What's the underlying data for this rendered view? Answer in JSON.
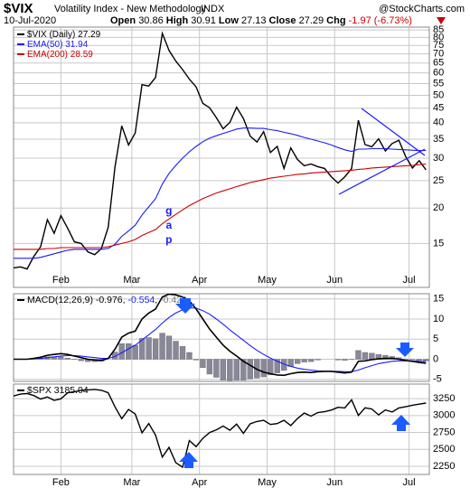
{
  "header": {
    "symbol": "$VIX",
    "name": "Volatility Index - New Methodology",
    "exchange": "INDX",
    "source": "@StockCharts.com",
    "date": "10-Jul-2020",
    "open_label": "Open",
    "open": 30.86,
    "high_label": "High",
    "high": 30.91,
    "low_label": "Low",
    "low": 27.13,
    "close_label": "Close",
    "close": 27.29,
    "change_label": "Chg",
    "change": "-1.97 (-6.73%)"
  },
  "chart_data": [
    {
      "type": "line",
      "ylog": true,
      "grid": true,
      "annotation": "gap",
      "x": [
        0,
        2,
        4,
        6,
        8,
        10,
        12,
        14,
        16,
        18,
        20,
        22,
        24,
        26,
        28,
        30,
        32,
        34,
        36,
        38,
        40,
        42,
        44,
        46,
        48,
        50,
        52,
        54,
        56,
        58,
        60,
        62,
        64,
        66,
        68,
        70,
        72,
        74,
        76,
        78,
        80,
        82,
        84,
        86,
        88,
        90,
        92,
        94,
        96,
        98,
        100,
        102,
        104,
        106,
        108,
        110,
        112,
        114,
        116,
        118,
        120,
        122
      ],
      "xlim": [
        0,
        123
      ],
      "xticks": [
        {
          "value": 14,
          "label": "Feb"
        },
        {
          "value": 35,
          "label": "Mar"
        },
        {
          "value": 55,
          "label": "Apr"
        },
        {
          "value": 75,
          "label": "May"
        },
        {
          "value": 95,
          "label": "Jun"
        },
        {
          "value": 117,
          "label": "Jul"
        }
      ],
      "ylim": [
        10.5,
        87
      ],
      "yticks": [
        15,
        20,
        25,
        30,
        35,
        40,
        45,
        50,
        55,
        60,
        65,
        70,
        75,
        80,
        85
      ],
      "series": [
        {
          "name": "$VIX (Daily)",
          "color": "#000000",
          "values": [
            12.3,
            12.4,
            12.2,
            13.5,
            14.6,
            18.2,
            16.3,
            18.8,
            17.0,
            15.2,
            15.0,
            14.0,
            13.7,
            14.4,
            17.1,
            27.9,
            39,
            33.4,
            36.8,
            54.5,
            53.9,
            57.8,
            82.7,
            72,
            66,
            61.6,
            57,
            53.5,
            46.8,
            45.2,
            41.7,
            38.1,
            40.1,
            45.4,
            41.4,
            35.9,
            34.2,
            37.2,
            31.4,
            33,
            27.6,
            32.6,
            29.7,
            28.2,
            28.6,
            28,
            27.6,
            25.8,
            24.5,
            25.8,
            27.6,
            40.8,
            33.5,
            32.9,
            35.1,
            31.8,
            33.8,
            34.7,
            30.4,
            27.7,
            29.4,
            27.29
          ]
        },
        {
          "name": "EMA(50)",
          "color": "#1a1aff",
          "values": [
            13.3,
            13.3,
            13.3,
            13.3,
            13.4,
            13.6,
            13.8,
            14.0,
            14.2,
            14.3,
            14.3,
            14.3,
            14.3,
            14.3,
            14.4,
            14.9,
            15.9,
            16.6,
            17.4,
            18.9,
            20.2,
            21.6,
            24.3,
            26.5,
            28.3,
            30.0,
            31.6,
            33.0,
            34.3,
            35.3,
            36.0,
            36.7,
            37.3,
            38.0,
            38.3,
            38.3,
            38.2,
            38.2,
            37.8,
            37.5,
            37.0,
            36.6,
            36.1,
            35.5,
            35.0,
            34.5,
            34.0,
            33.4,
            32.7,
            32.1,
            31.7,
            32.3,
            32.3,
            32.4,
            32.4,
            32.4,
            32.3,
            32.2,
            32.1,
            32.0,
            31.9,
            31.94
          ]
        },
        {
          "name": "EMA(200)",
          "color": "#cc0000",
          "values": [
            14.3,
            14.3,
            14.3,
            14.3,
            14.3,
            14.4,
            14.4,
            14.5,
            14.5,
            14.5,
            14.5,
            14.5,
            14.5,
            14.5,
            14.6,
            14.8,
            15.0,
            15.2,
            15.5,
            16.0,
            16.4,
            16.8,
            17.6,
            18.3,
            19.0,
            19.7,
            20.4,
            21.0,
            21.6,
            22.1,
            22.6,
            23.0,
            23.4,
            23.8,
            24.2,
            24.6,
            24.9,
            25.2,
            25.5,
            25.7,
            25.9,
            26.1,
            26.3,
            26.4,
            26.6,
            26.7,
            26.8,
            26.9,
            27.0,
            27.1,
            27.2,
            27.4,
            27.5,
            27.7,
            27.8,
            27.9,
            28.0,
            28.1,
            28.2,
            28.3,
            28.45,
            28.59
          ]
        }
      ]
    },
    {
      "type": "macd",
      "grid": true,
      "label": "MACD(12,26,9)",
      "x": [
        0,
        2,
        4,
        6,
        8,
        10,
        12,
        14,
        16,
        18,
        20,
        22,
        24,
        26,
        28,
        30,
        32,
        34,
        36,
        38,
        40,
        42,
        44,
        46,
        48,
        50,
        52,
        54,
        56,
        58,
        60,
        62,
        64,
        66,
        68,
        70,
        72,
        74,
        76,
        78,
        80,
        82,
        84,
        86,
        88,
        90,
        92,
        94,
        96,
        98,
        100,
        102,
        104,
        106,
        108,
        110,
        112,
        114,
        116,
        118,
        120,
        122
      ],
      "xlim": [
        0,
        123
      ],
      "xticks": [
        14,
        35,
        55,
        75,
        95,
        117
      ],
      "ylim": [
        -5.5,
        16.3
      ],
      "yticks": [
        15,
        10,
        5,
        0,
        -5
      ],
      "series": [
        {
          "color": "#888899",
          "kind": "bar",
          "values": [
            0,
            0,
            0,
            0.1,
            0.3,
            0.6,
            0.6,
            0.6,
            0.3,
            -0.1,
            -0.4,
            -0.6,
            -0.6,
            -0.5,
            0,
            1.8,
            3.9,
            3.9,
            3.5,
            5.2,
            5.4,
            5.1,
            6.5,
            5.8,
            4.5,
            3.2,
            1.7,
            -0.2,
            -2.1,
            -3.7,
            -4.5,
            -5.2,
            -5.3,
            -5.2,
            -5.2,
            -4.9,
            -4.7,
            -4.4,
            -3.9,
            -3.4,
            -2.8,
            -1.8,
            -1.1,
            -0.7,
            -0.6,
            -0.2,
            0,
            0,
            -0.2,
            -0.3,
            -0.1,
            2.2,
            1.7,
            1.5,
            1.2,
            1.0,
            0.7,
            0.4,
            0.1,
            -0.1,
            -0.3,
            -0.422
          ]
        },
        {
          "color": "#1a1aff",
          "kind": "line",
          "values": [
            0,
            0,
            0,
            0.1,
            0.2,
            0.4,
            0.6,
            0.8,
            0.9,
            0.9,
            0.8,
            0.6,
            0.4,
            0.2,
            0.2,
            0.7,
            1.6,
            2.6,
            3.5,
            4.8,
            6.1,
            7.4,
            9.0,
            10.4,
            11.5,
            12.3,
            12.8,
            12.7,
            12.1,
            11.2,
            10.0,
            8.7,
            7.3,
            6.0,
            4.7,
            3.4,
            2.2,
            1.2,
            0.3,
            -0.5,
            -1.2,
            -1.8,
            -2.2,
            -2.5,
            -2.7,
            -2.9,
            -3.0,
            -3.0,
            -3.0,
            -3.1,
            -3.1,
            -2.7,
            -2.1,
            -1.6,
            -1.1,
            -0.8,
            -0.5,
            -0.4,
            -0.4,
            -0.4,
            -0.5,
            -0.554
          ]
        },
        {
          "color": "#000000",
          "kind": "line",
          "values": [
            0,
            0,
            0,
            0.2,
            0.5,
            1.0,
            1.2,
            1.4,
            1.2,
            0.8,
            0.4,
            0,
            -0.2,
            -0.3,
            0.2,
            2.5,
            5.5,
            6.5,
            7.0,
            10.0,
            11.5,
            12.5,
            15.5,
            16.2,
            16.0,
            15.5,
            14.5,
            12.5,
            10.0,
            7.5,
            5.5,
            3.5,
            2.0,
            0.8,
            -0.5,
            -1.5,
            -2.5,
            -3.2,
            -3.6,
            -3.9,
            -4.0,
            -3.6,
            -3.3,
            -3.2,
            -3.3,
            -3.1,
            -3.0,
            -3.0,
            -3.2,
            -3.4,
            -3.2,
            -0.5,
            -0.4,
            -0.1,
            0.1,
            0.2,
            0.2,
            0.0,
            -0.3,
            -0.5,
            -0.8,
            -0.976
          ]
        }
      ]
    },
    {
      "type": "line",
      "grid": true,
      "x": [
        0,
        2,
        4,
        6,
        8,
        10,
        12,
        14,
        16,
        18,
        20,
        22,
        24,
        26,
        28,
        30,
        32,
        34,
        36,
        38,
        40,
        42,
        44,
        46,
        48,
        50,
        52,
        54,
        56,
        58,
        60,
        62,
        64,
        66,
        68,
        70,
        72,
        74,
        76,
        78,
        80,
        82,
        84,
        86,
        88,
        90,
        92,
        94,
        96,
        98,
        100,
        102,
        104,
        106,
        108,
        110,
        112,
        114,
        116,
        118,
        120,
        122
      ],
      "xlim": [
        0,
        123
      ],
      "xticks": [
        {
          "value": 14,
          "label": "Feb"
        },
        {
          "value": 35,
          "label": "Mar"
        },
        {
          "value": 55,
          "label": "Apr"
        },
        {
          "value": 75,
          "label": "May"
        },
        {
          "value": 95,
          "label": "Jun"
        },
        {
          "value": 117,
          "label": "Jul"
        }
      ],
      "ylim": [
        2130,
        3465
      ],
      "yticks": [
        3250,
        3000,
        2750,
        2500,
        2250
      ],
      "series": [
        {
          "name": "$SPX",
          "color": "#000000",
          "values": [
            3289,
            3317,
            3325,
            3295,
            3244,
            3276,
            3225,
            3248,
            3335,
            3352,
            3373,
            3380,
            3386,
            3373,
            3337,
            3128,
            2954,
            3090,
            3023,
            2746,
            2882,
            2711,
            2386,
            2529,
            2305,
            2237,
            2630,
            2541,
            2663,
            2750,
            2790,
            2846,
            2783,
            2874,
            2737,
            2878,
            2912,
            2930,
            2868,
            2882,
            2930,
            2852,
            2955,
            3036,
            2991,
            3044,
            3056,
            3080,
            3122,
            3112,
            3232,
            3002,
            3114,
            3097,
            3010,
            3083,
            3053,
            3113,
            3130,
            3152,
            3169,
            3185.04
          ]
        }
      ]
    }
  ]
}
